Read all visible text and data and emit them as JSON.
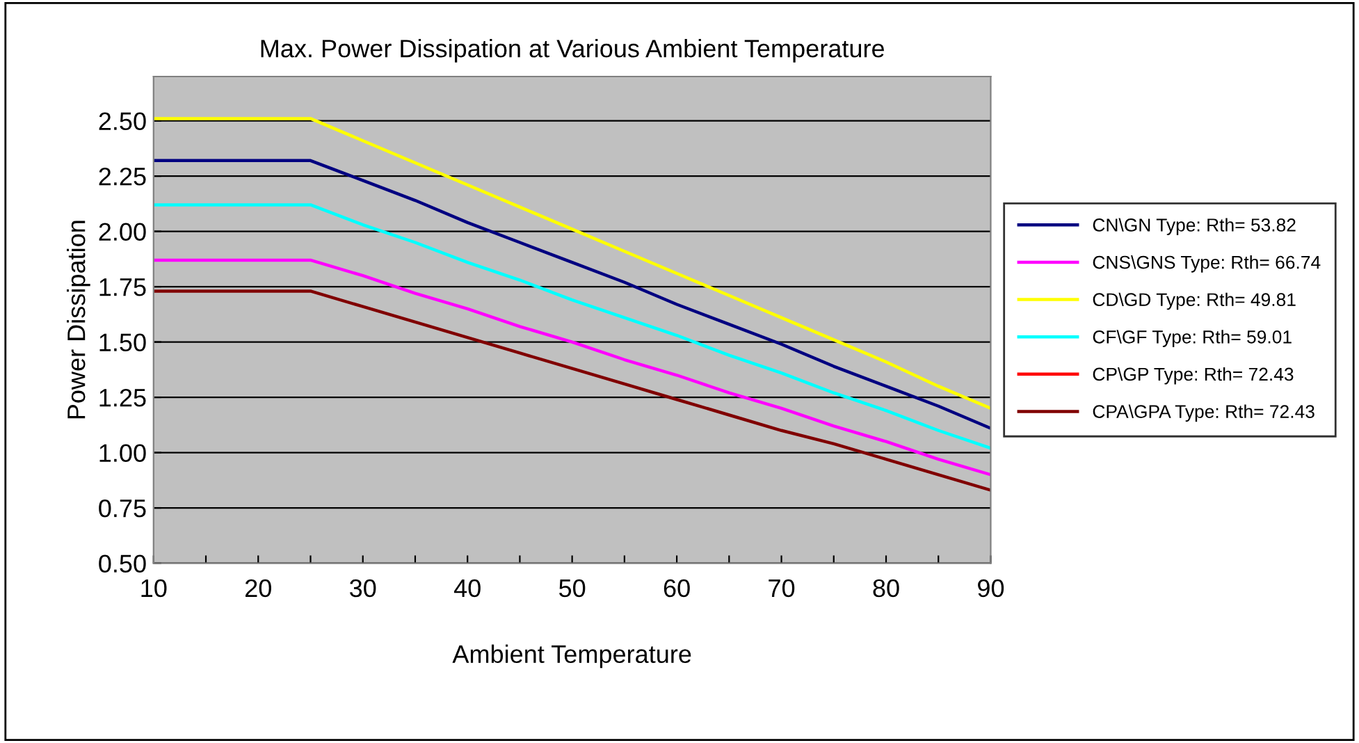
{
  "chart_data": {
    "type": "line",
    "title": "Max. Power Dissipation at Various Ambient Temperature",
    "xlabel": "Ambient Temperature",
    "ylabel": "Power Dissipation",
    "x": [
      10,
      15,
      20,
      25,
      30,
      35,
      40,
      45,
      50,
      55,
      60,
      65,
      70,
      75,
      80,
      85,
      90
    ],
    "series": [
      {
        "name": "CN\\GN Type: Rth= 53.82",
        "color": "#000080",
        "values": [
          2.32,
          2.32,
          2.32,
          2.32,
          2.23,
          2.14,
          2.04,
          1.95,
          1.86,
          1.77,
          1.67,
          1.58,
          1.49,
          1.39,
          1.3,
          1.21,
          1.11
        ]
      },
      {
        "name": "CNS\\GNS Type: Rth= 66.74",
        "color": "#ff00ff",
        "values": [
          1.87,
          1.87,
          1.87,
          1.87,
          1.8,
          1.72,
          1.65,
          1.57,
          1.5,
          1.42,
          1.35,
          1.27,
          1.2,
          1.12,
          1.05,
          0.97,
          0.9
        ]
      },
      {
        "name": "CD\\GD Type: Rth= 49.81",
        "color": "#ffff00",
        "values": [
          2.51,
          2.51,
          2.51,
          2.51,
          2.41,
          2.31,
          2.21,
          2.11,
          2.01,
          1.91,
          1.81,
          1.71,
          1.61,
          1.51,
          1.41,
          1.3,
          1.2
        ]
      },
      {
        "name": "CF\\GF Type: Rth= 59.01",
        "color": "#00ffff",
        "values": [
          2.12,
          2.12,
          2.12,
          2.12,
          2.03,
          1.95,
          1.86,
          1.78,
          1.69,
          1.61,
          1.53,
          1.44,
          1.36,
          1.27,
          1.19,
          1.1,
          1.02
        ]
      },
      {
        "name": "CP\\GP Type: Rth= 72.43",
        "color": "#ff0000",
        "values": [
          null,
          null,
          null,
          null,
          null,
          null,
          null,
          null,
          null,
          null,
          null,
          null,
          null,
          null,
          null,
          null,
          null
        ]
      },
      {
        "name": "CPA\\GPA Type: Rth= 72.43",
        "color": "#800000",
        "values": [
          1.73,
          1.73,
          1.73,
          1.73,
          1.66,
          1.59,
          1.52,
          1.45,
          1.38,
          1.31,
          1.24,
          1.17,
          1.1,
          1.04,
          0.97,
          0.9,
          0.83
        ]
      }
    ],
    "xlim": [
      10,
      90
    ],
    "xticks": [
      10,
      {
        "value": 15,
        "label": null
      },
      20,
      {
        "value": 25,
        "label": null
      },
      30,
      {
        "value": 35,
        "label": null
      },
      40,
      {
        "value": 45,
        "label": null
      },
      50,
      {
        "value": 55,
        "label": null
      },
      60,
      {
        "value": 65,
        "label": null
      },
      70,
      {
        "value": 75,
        "label": null
      },
      80,
      {
        "value": 85,
        "label": null
      },
      90
    ],
    "ylim": [
      0.5,
      2.7
    ],
    "yticks": [
      {
        "value": 0.5,
        "label": "0.50"
      },
      {
        "value": 0.75,
        "label": "0.75"
      },
      {
        "value": 1,
        "label": "1.00"
      },
      {
        "value": 1.25,
        "label": "1.25"
      },
      {
        "value": 1.5,
        "label": "1.50"
      },
      {
        "value": 1.75,
        "label": "1.75"
      },
      {
        "value": 2,
        "label": "2.00"
      },
      {
        "value": 2.25,
        "label": "2.25"
      },
      {
        "value": 2.5,
        "label": "2.50"
      }
    ],
    "grid": "y",
    "legend": "right",
    "marker": "none",
    "line_style": "solid"
  }
}
